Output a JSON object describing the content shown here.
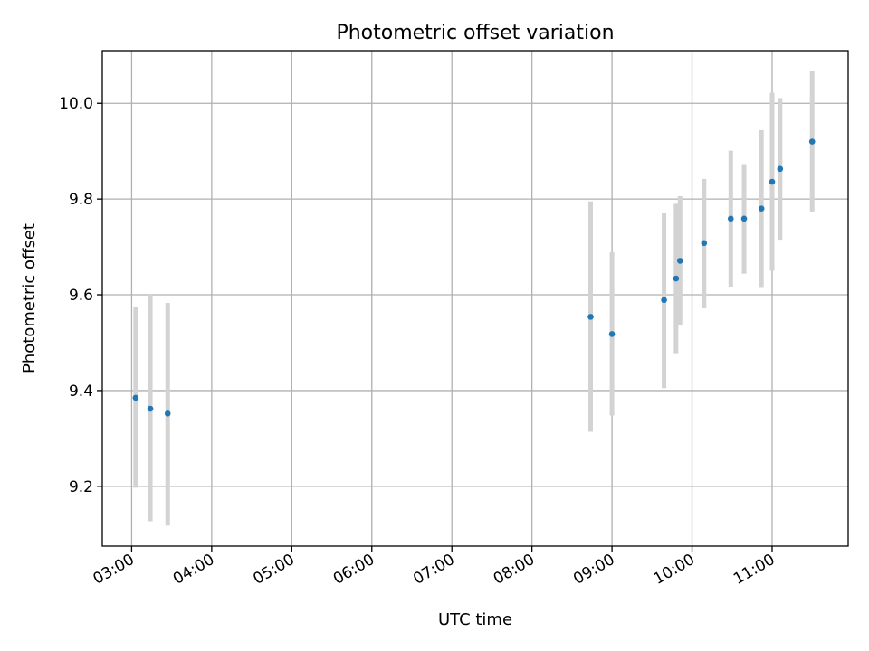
{
  "chart_data": {
    "type": "scatter",
    "title": "Photometric offset variation",
    "xlabel": "UTC time",
    "ylabel": "Photometric offset",
    "xlim": [
      "02:38",
      "11:57"
    ],
    "ylim": [
      9.075,
      10.11
    ],
    "x_ticks": [
      "03:00",
      "04:00",
      "05:00",
      "06:00",
      "07:00",
      "08:00",
      "09:00",
      "10:00",
      "11:00"
    ],
    "y_ticks": [
      9.2,
      9.4,
      9.6,
      9.8,
      10.0
    ],
    "y_tick_labels": [
      "9.2",
      "9.4",
      "9.6",
      "9.8",
      "10.0"
    ],
    "grid": true,
    "marker_color": "#1f77b4",
    "errorbar_color": "#d3d3d3",
    "points": [
      {
        "x": "03:03",
        "y": 9.385,
        "err_low": 9.197,
        "err_high": 9.575
      },
      {
        "x": "03:14",
        "y": 9.362,
        "err_low": 9.127,
        "err_high": 9.6
      },
      {
        "x": "03:27",
        "y": 9.352,
        "err_low": 9.118,
        "err_high": 9.583
      },
      {
        "x": "08:44",
        "y": 9.554,
        "err_low": 9.314,
        "err_high": 9.795
      },
      {
        "x": "09:00",
        "y": 9.518,
        "err_low": 9.348,
        "err_high": 9.689
      },
      {
        "x": "09:39",
        "y": 9.589,
        "err_low": 9.405,
        "err_high": 9.77
      },
      {
        "x": "09:48",
        "y": 9.634,
        "err_low": 9.478,
        "err_high": 9.79
      },
      {
        "x": "09:51",
        "y": 9.671,
        "err_low": 9.537,
        "err_high": 9.806
      },
      {
        "x": "10:09",
        "y": 9.708,
        "err_low": 9.572,
        "err_high": 9.842
      },
      {
        "x": "10:29",
        "y": 9.759,
        "err_low": 9.617,
        "err_high": 9.901
      },
      {
        "x": "10:39",
        "y": 9.759,
        "err_low": 9.644,
        "err_high": 9.873
      },
      {
        "x": "10:52",
        "y": 9.78,
        "err_low": 9.616,
        "err_high": 9.944
      },
      {
        "x": "11:00",
        "y": 9.836,
        "err_low": 9.65,
        "err_high": 10.022
      },
      {
        "x": "11:06",
        "y": 9.863,
        "err_low": 9.715,
        "err_high": 10.011
      },
      {
        "x": "11:30",
        "y": 9.92,
        "err_low": 9.774,
        "err_high": 10.067
      }
    ]
  }
}
